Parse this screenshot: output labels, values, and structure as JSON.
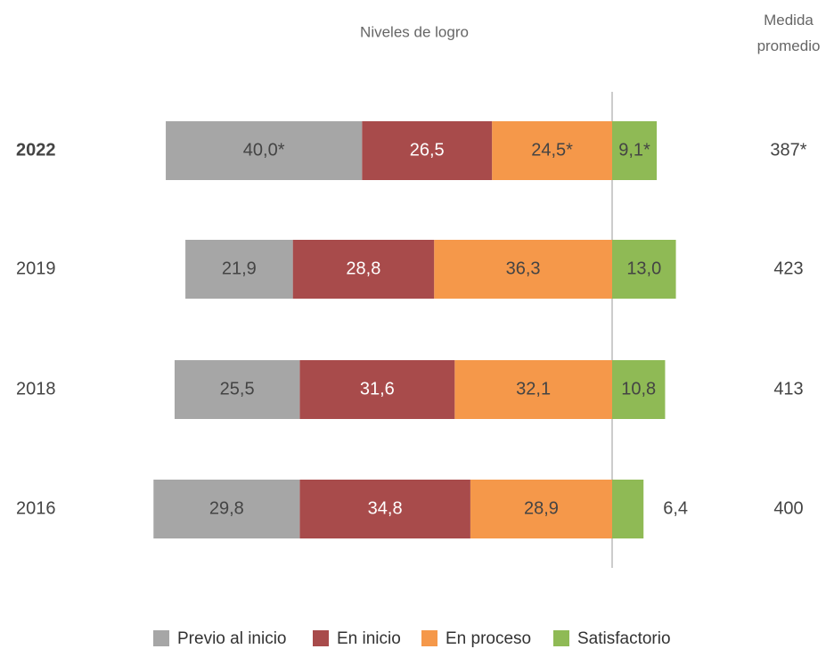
{
  "chart_data": {
    "type": "diverging_bar",
    "title": "Niveles de logro",
    "categories": [
      "2022",
      "2019",
      "2018",
      "2016"
    ],
    "series": [
      {
        "name": "Previo al inicio",
        "color": "#a6a6a6",
        "values": [
          40.0,
          21.9,
          25.5,
          29.8
        ],
        "value_labels": [
          "40,0*",
          "21,9",
          "25,5",
          "29,8"
        ]
      },
      {
        "name": "En inicio",
        "color": "#a84b4b",
        "values": [
          26.5,
          28.8,
          31.6,
          34.8
        ],
        "value_labels": [
          "26,5",
          "28,8",
          "31,6",
          "34,8"
        ]
      },
      {
        "name": "En proceso",
        "color": "#f5984a",
        "values": [
          24.5,
          36.3,
          32.1,
          28.9
        ],
        "value_labels": [
          "24,5*",
          "36,3",
          "32,1",
          "28,9"
        ]
      },
      {
        "name": "Satisfactorio",
        "color": "#8fba55",
        "values": [
          9.1,
          13.0,
          10.8,
          6.4
        ],
        "value_labels": [
          "9,1*",
          "13,0",
          "10,8",
          "6,4"
        ]
      }
    ],
    "average": {
      "title": "Medida promedio",
      "values": [
        387,
        423,
        413,
        400
      ],
      "value_labels": [
        "387*",
        "423",
        "413",
        "400"
      ]
    },
    "legend": "bottom"
  }
}
